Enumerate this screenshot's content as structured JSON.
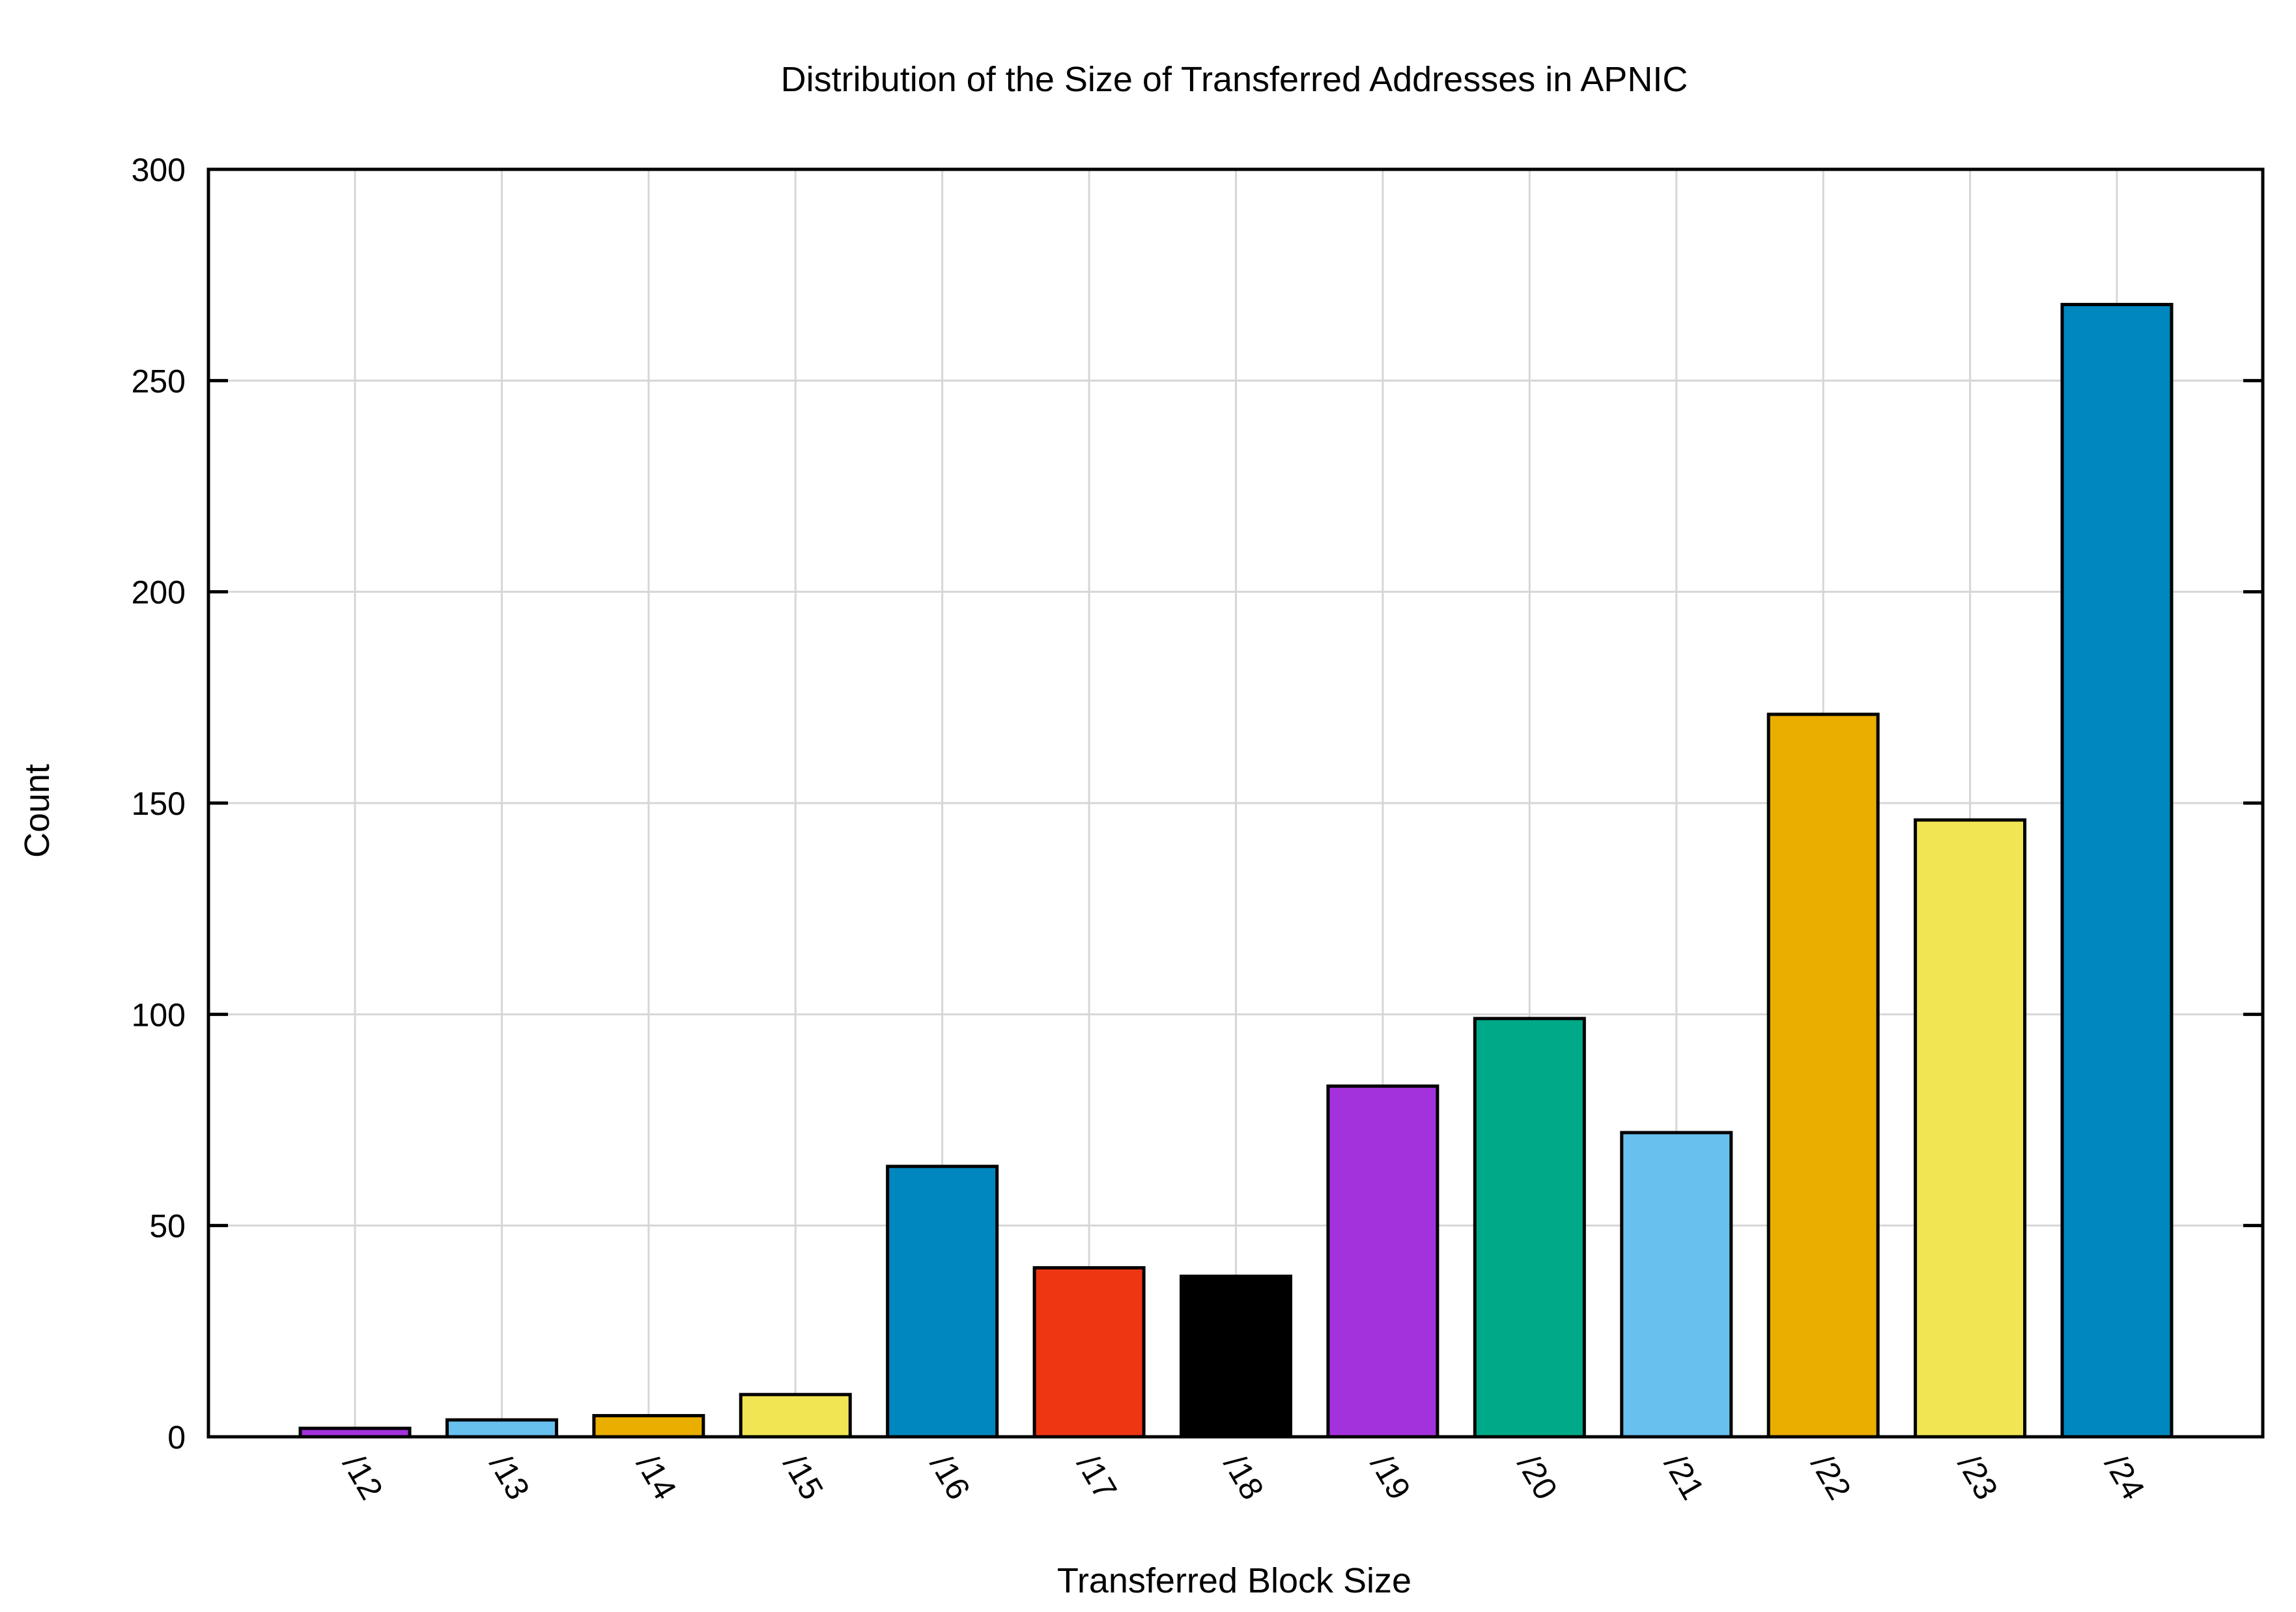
{
  "chart_data": {
    "type": "bar",
    "title": "Distribution of the Size of Transferred Addresses in APNIC",
    "xlabel": "Transferred Block Size",
    "ylabel": "Count",
    "ylim": [
      0,
      300
    ],
    "yticks": [
      0,
      50,
      100,
      150,
      200,
      250,
      300
    ],
    "grid": true,
    "legend": "none",
    "categories": [
      "/12",
      "/13",
      "/14",
      "/15",
      "/16",
      "/17",
      "/18",
      "/19",
      "/20",
      "/21",
      "/22",
      "/23",
      "/24"
    ],
    "values": [
      2,
      4,
      5,
      10,
      64,
      40,
      38,
      83,
      99,
      72,
      171,
      146,
      268
    ],
    "colors": [
      "#a432dc",
      "#68c0ee",
      "#eaae00",
      "#f2e553",
      "#0087bf",
      "#ee3613",
      "#000000",
      "#a432dc",
      "#00aa88",
      "#68c0ee",
      "#eaae00",
      "#f2e553",
      "#0087bf"
    ]
  }
}
